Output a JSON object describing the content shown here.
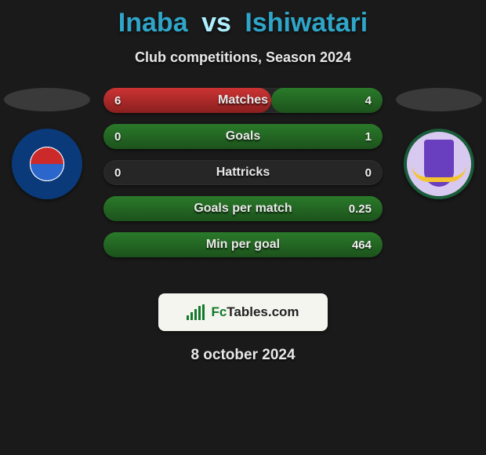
{
  "header": {
    "player1": "Inaba",
    "vs": "vs",
    "player2": "Ishiwatari",
    "subtitle": "Club competitions, Season 2024"
  },
  "colors": {
    "background": "#1a1a1a",
    "accent_p1": "#2fa6c9",
    "accent_vs": "#aef0ff",
    "bar_left_fill": "#c33",
    "bar_right_fill": "#2a7a2a",
    "row_bg": "#262626",
    "text": "#e8e8e8"
  },
  "stats": {
    "rows": [
      {
        "label": "Matches",
        "left_val": "6",
        "right_val": "4",
        "left_pct": 60,
        "right_pct": 40
      },
      {
        "label": "Goals",
        "left_val": "0",
        "right_val": "1",
        "left_pct": 0,
        "right_pct": 100
      },
      {
        "label": "Hattricks",
        "left_val": "0",
        "right_val": "0",
        "left_pct": 0,
        "right_pct": 0
      },
      {
        "label": "Goals per match",
        "left_val": "",
        "right_val": "0.25",
        "left_pct": 0,
        "right_pct": 100
      },
      {
        "label": "Min per goal",
        "left_val": "",
        "right_val": "464",
        "left_pct": 0,
        "right_pct": 100
      }
    ]
  },
  "brand": {
    "text_prefix": "Fc",
    "text_suffix": "Tables.com"
  },
  "footer": {
    "date": "8 october 2024"
  },
  "teams": {
    "left_badge_name": "kagoshima-united-badge",
    "right_badge_name": "ehime-fc-badge"
  }
}
